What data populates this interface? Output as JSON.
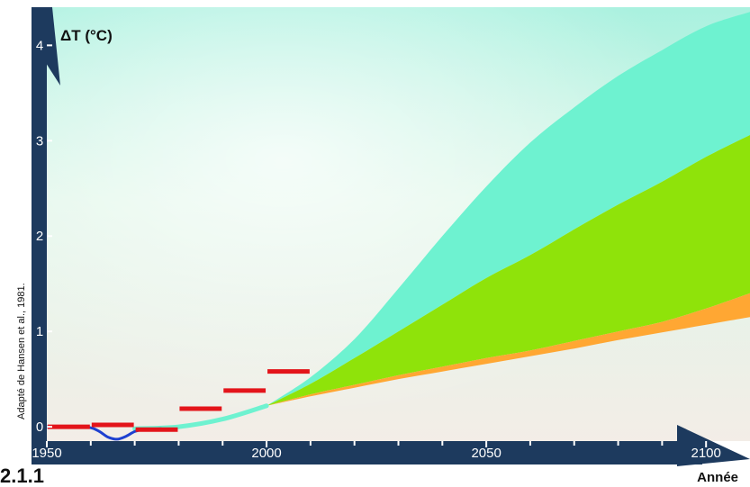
{
  "chart_data": {
    "type": "area",
    "title": "",
    "ylabel": "ΔT (°C)",
    "xlabel": "Année",
    "xlim": [
      1950,
      2110
    ],
    "ylim": [
      -0.15,
      4.4
    ],
    "x_ticks": [
      1950,
      2000,
      2050,
      2100
    ],
    "y_ticks": [
      0,
      1,
      2,
      3,
      4
    ],
    "minor_x_ticks": [
      1960,
      1970,
      1980,
      1990,
      2010,
      2020,
      2030,
      2040,
      2060,
      2070,
      2080,
      2090
    ],
    "grid": false,
    "legend": "none",
    "x": [
      2000,
      2010,
      2020,
      2030,
      2040,
      2050,
      2060,
      2070,
      2080,
      2090,
      2100,
      2110
    ],
    "series": [
      {
        "type": "area-band",
        "color": "#6ef2d0",
        "lower": [
          0.22,
          0.45,
          0.72,
          1.0,
          1.28,
          1.56,
          1.8,
          2.07,
          2.33,
          2.57,
          2.83,
          3.06
        ],
        "upper": [
          0.22,
          0.52,
          0.92,
          1.45,
          2.0,
          2.52,
          2.98,
          3.35,
          3.68,
          3.95,
          4.2,
          4.35
        ]
      },
      {
        "type": "area-band",
        "color": "#8fe30a",
        "lower": [
          0.22,
          0.34,
          0.44,
          0.54,
          0.63,
          0.72,
          0.8,
          0.9,
          1.0,
          1.1,
          1.24,
          1.4
        ],
        "upper": [
          0.22,
          0.45,
          0.72,
          1.0,
          1.28,
          1.56,
          1.8,
          2.07,
          2.33,
          2.57,
          2.83,
          3.06
        ]
      },
      {
        "type": "area-band",
        "color": "#ffa733",
        "lower": [
          0.22,
          0.32,
          0.41,
          0.5,
          0.58,
          0.66,
          0.74,
          0.82,
          0.91,
          0.99,
          1.07,
          1.15
        ],
        "upper": [
          0.22,
          0.34,
          0.44,
          0.54,
          0.63,
          0.72,
          0.8,
          0.9,
          1.0,
          1.1,
          1.24,
          1.4
        ]
      }
    ],
    "curve_1950_2000": {
      "color": "#6ef2d0",
      "x": [
        1970,
        1980,
        1990,
        2000
      ],
      "y": [
        -0.02,
        0.0,
        0.08,
        0.22
      ]
    },
    "observed_line": {
      "color": "#1e40d0",
      "x": [
        1950,
        1956,
        1960,
        1962,
        1964,
        1966,
        1968,
        1970,
        1972,
        1976
      ],
      "y": [
        0.0,
        0.0,
        -0.01,
        -0.05,
        -0.11,
        -0.13,
        -0.1,
        -0.05,
        -0.03,
        -0.02
      ]
    },
    "decadal_means": {
      "color": "#e3141a",
      "segments": [
        {
          "x0": 1950,
          "x1": 1960,
          "y": 0.0
        },
        {
          "x0": 1960,
          "x1": 1970,
          "y": 0.02
        },
        {
          "x0": 1970,
          "x1": 1980,
          "y": -0.03
        },
        {
          "x0": 1980,
          "x1": 1990,
          "y": 0.19
        },
        {
          "x0": 1990,
          "x1": 2000,
          "y": 0.38
        },
        {
          "x0": 2000,
          "x1": 2010,
          "y": 0.58
        }
      ]
    },
    "colors": {
      "axis": "#1d3a5e",
      "bg_top": "#b8f4e6",
      "bg_bottom": "#f3ece6"
    }
  },
  "credit": {
    "text": "Adapté de Hansen et al., 1981."
  },
  "figure_number": "2.1.1"
}
